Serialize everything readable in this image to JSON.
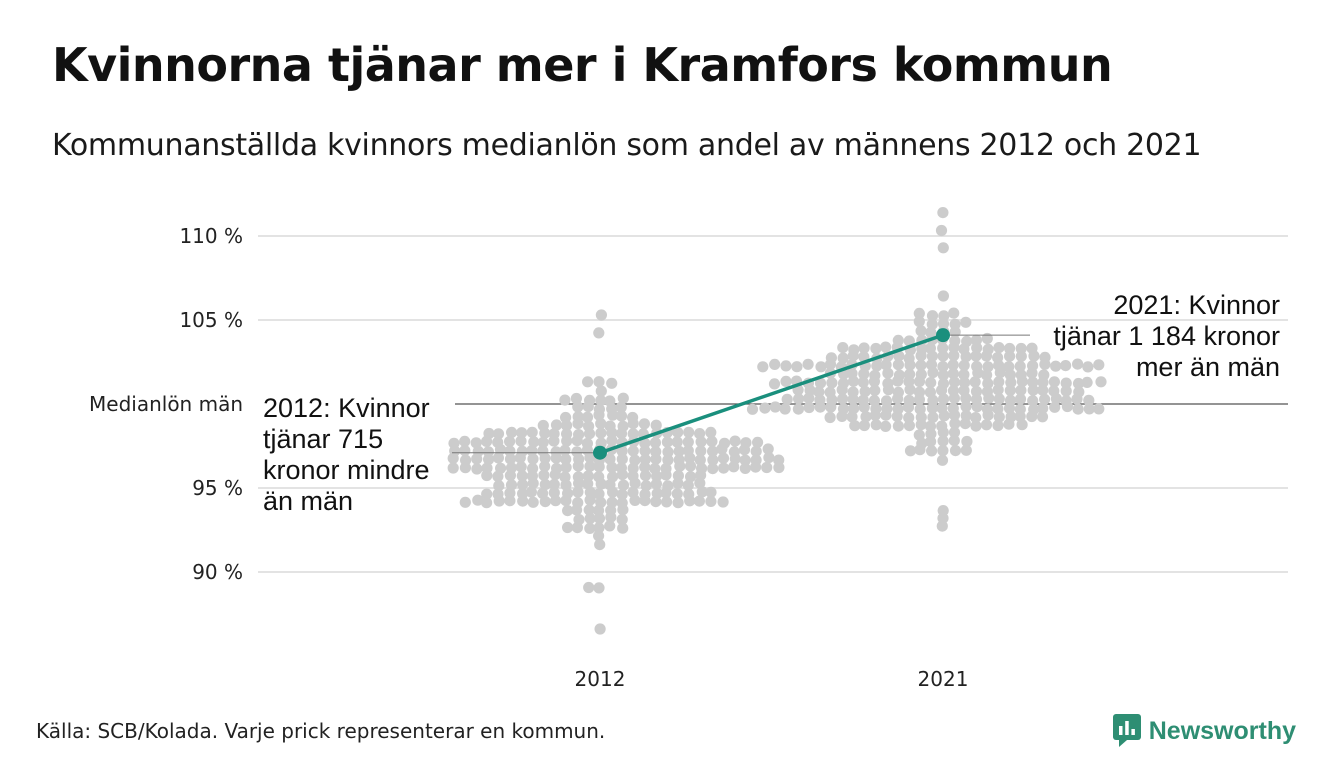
{
  "title": "Kvinnorna tjänar mer i Kramfors kommun",
  "subtitle": "Kommunanställda kvinnors medianlön som andel av männens 2012 och 2021",
  "source": "Källa: SCB/Kolada. Varje prick representerar en kommun.",
  "brand": {
    "name": "Newsworthy",
    "icon": "newsworthy-logo-icon"
  },
  "colors": {
    "dots": "#cccccc",
    "highlight": "#1a8f7d",
    "grid": "#e3e3e3",
    "reference": "#555555",
    "brand": "#2e8e73"
  },
  "chart_data": {
    "type": "scatter",
    "title": "Kvinnorna tjänar mer i Kramfors kommun",
    "categories": [
      "2012",
      "2021"
    ],
    "y_ticks": [
      {
        "value": 110,
        "label": "110 %"
      },
      {
        "value": 105,
        "label": "105 %"
      },
      {
        "value": 95,
        "label": "95 %"
      },
      {
        "value": 90,
        "label": "90 %"
      }
    ],
    "ylim": [
      86,
      111.5
    ],
    "reference_line": {
      "value": 100,
      "label": "Medianlön män"
    },
    "highlight": {
      "name": "Kramfors",
      "values": [
        97.1,
        104.1
      ],
      "annotations": [
        {
          "category": "2012",
          "lines": [
            "2012: Kvinnor",
            "tjänar 715",
            "kronor mindre",
            "än män"
          ]
        },
        {
          "category": "2021",
          "lines": [
            "2021: Kvinnor",
            "tjänar 1 184 kronor",
            "mer än män"
          ]
        }
      ]
    },
    "distributions": [
      {
        "category": "2012",
        "median": 96.5,
        "spread": 2.6,
        "min": 86.5,
        "max": 105.2,
        "extremes": [
          86.5,
          89.0,
          89.2,
          104.5,
          105.2
        ],
        "n": 290
      },
      {
        "category": "2021",
        "median": 101.0,
        "spread": 2.6,
        "min": 92.7,
        "max": 111.4,
        "extremes": [
          92.7,
          93.2,
          93.5,
          109.5,
          110.5,
          111.4
        ],
        "n": 290
      }
    ],
    "grid": true
  }
}
